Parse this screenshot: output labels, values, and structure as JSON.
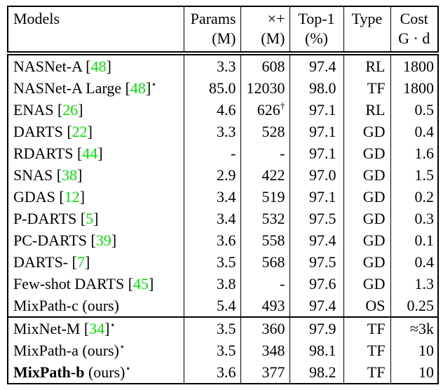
{
  "colors": {
    "citation": "#00e000",
    "text": "#000000",
    "border": "#000000",
    "background": "#ffffff"
  },
  "symbols": {
    "star": "⋆",
    "dagger": "†"
  },
  "table": {
    "columns": [
      {
        "id": "model",
        "line1": "Models",
        "line2": ""
      },
      {
        "id": "params",
        "line1": "Params",
        "line2": "(M)"
      },
      {
        "id": "flops",
        "line1": "×+",
        "line2": "(M)"
      },
      {
        "id": "top1",
        "line1": "Top-1",
        "line2": "(%)"
      },
      {
        "id": "type",
        "line1": "Type",
        "line2": ""
      },
      {
        "id": "cost",
        "line1": "Cost",
        "line2": "G · d"
      }
    ],
    "groups": [
      {
        "rows": [
          {
            "name": "NASNet-A",
            "cite": "48",
            "star": false,
            "bold": false,
            "suffix": "",
            "params": "3.3",
            "flops": "608",
            "flops_sup": "",
            "top1": "97.4",
            "type": "RL",
            "cost": "1800"
          },
          {
            "name": "NASNet-A Large",
            "cite": "48",
            "star": true,
            "bold": false,
            "suffix": "",
            "params": "85.0",
            "flops": "12030",
            "flops_sup": "",
            "top1": "98.0",
            "type": "TF",
            "cost": "1800"
          },
          {
            "name": "ENAS",
            "cite": "26",
            "star": false,
            "bold": false,
            "suffix": "",
            "params": "4.6",
            "flops": "626",
            "flops_sup": "†",
            "top1": "97.1",
            "type": "RL",
            "cost": "0.5"
          },
          {
            "name": "DARTS",
            "cite": "22",
            "star": false,
            "bold": false,
            "suffix": "",
            "params": "3.3",
            "flops": "528",
            "flops_sup": "",
            "top1": "97.1",
            "type": "GD",
            "cost": "0.4"
          },
          {
            "name": "RDARTS",
            "cite": "44",
            "star": false,
            "bold": false,
            "suffix": "",
            "params": "-",
            "flops": "-",
            "flops_sup": "",
            "top1": "97.1",
            "type": "GD",
            "cost": "1.6"
          },
          {
            "name": "SNAS",
            "cite": "38",
            "star": false,
            "bold": false,
            "suffix": "",
            "params": "2.9",
            "flops": "422",
            "flops_sup": "",
            "top1": "97.0",
            "type": "GD",
            "cost": "1.5"
          },
          {
            "name": "GDAS",
            "cite": "12",
            "star": false,
            "bold": false,
            "suffix": "",
            "params": "3.4",
            "flops": "519",
            "flops_sup": "",
            "top1": "97.1",
            "type": "GD",
            "cost": "0.2"
          },
          {
            "name": "P-DARTS",
            "cite": "5",
            "star": false,
            "bold": false,
            "suffix": "",
            "params": "3.4",
            "flops": "532",
            "flops_sup": "",
            "top1": "97.5",
            "type": "GD",
            "cost": "0.3"
          },
          {
            "name": "PC-DARTS",
            "cite": "39",
            "star": false,
            "bold": false,
            "suffix": "",
            "params": "3.6",
            "flops": "558",
            "flops_sup": "",
            "top1": "97.4",
            "type": "GD",
            "cost": "0.1"
          },
          {
            "name": "DARTS-",
            "cite": "7",
            "star": false,
            "bold": false,
            "suffix": "",
            "params": "3.5",
            "flops": "568",
            "flops_sup": "",
            "top1": "97.5",
            "type": "GD",
            "cost": "0.4"
          },
          {
            "name": "Few-shot DARTS",
            "cite": "45",
            "star": false,
            "bold": false,
            "suffix": "",
            "params": "3.8",
            "flops": "-",
            "flops_sup": "",
            "top1": "97.6",
            "type": "GD",
            "cost": "1.3"
          },
          {
            "name": "MixPath-c",
            "cite": null,
            "star": false,
            "bold": false,
            "suffix": " (ours)",
            "params": "5.4",
            "flops": "493",
            "flops_sup": "",
            "top1": "97.4",
            "type": "OS",
            "cost": "0.25"
          }
        ]
      },
      {
        "rows": [
          {
            "name": "MixNet-M",
            "cite": "34",
            "star": true,
            "bold": false,
            "suffix": "",
            "params": "3.5",
            "flops": "360",
            "flops_sup": "",
            "top1": "97.9",
            "type": "TF",
            "cost": "≈3k"
          },
          {
            "name": "MixPath-a",
            "cite": null,
            "star": true,
            "bold": false,
            "suffix": " (ours)",
            "params": "3.5",
            "flops": "348",
            "flops_sup": "",
            "top1": "98.1",
            "type": "TF",
            "cost": "10"
          },
          {
            "name": "MixPath-b",
            "cite": null,
            "star": true,
            "bold": true,
            "suffix": " (ours)",
            "params": "3.6",
            "flops": "377",
            "flops_sup": "",
            "top1": "98.2",
            "type": "TF",
            "cost": "10"
          }
        ]
      }
    ]
  }
}
